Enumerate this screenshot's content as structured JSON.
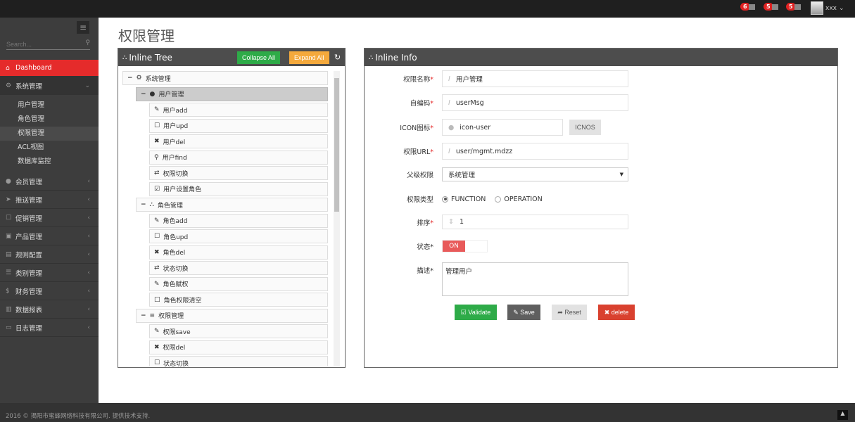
{
  "topbar": {
    "badges": [
      {
        "count": "6",
        "icon": "bell-icon"
      },
      {
        "count": "5",
        "icon": "envelope-icon"
      },
      {
        "count": "5",
        "icon": "tasks-icon"
      }
    ],
    "user": "xxx"
  },
  "sidebar": {
    "search_placeholder": "Search...",
    "dashboard": "Dashboard",
    "system": "系统管理",
    "sub": [
      "用户管理",
      "角色管理",
      "权限管理",
      "ACL视图",
      "数据库监控"
    ],
    "selected_sub": "权限管理",
    "groups": [
      {
        "label": "会员管理",
        "icon": "user-icon"
      },
      {
        "label": "推送管理",
        "icon": "send-icon"
      },
      {
        "label": "促销管理",
        "icon": "edit-icon"
      },
      {
        "label": "产品管理",
        "icon": "folder-icon"
      },
      {
        "label": "规则配置",
        "icon": "rule-icon"
      },
      {
        "label": "类别管理",
        "icon": "list-icon"
      },
      {
        "label": "财务管理",
        "icon": "money-icon"
      },
      {
        "label": "数据报表",
        "icon": "chart-icon"
      },
      {
        "label": "日志管理",
        "icon": "log-icon"
      }
    ]
  },
  "page_title": "权限管理",
  "tree_panel": {
    "title": "Inline Tree",
    "collapse": "Collapse All",
    "expand": "Expand All",
    "nodes": [
      {
        "level": 0,
        "label": "系统管理",
        "icon": "cogs-icon",
        "toggle": "−"
      },
      {
        "level": 1,
        "label": "用户管理",
        "icon": "user-icon",
        "toggle": "−",
        "selected": true
      },
      {
        "level": 2,
        "label": "用户add",
        "icon": "pencil-icon"
      },
      {
        "level": 2,
        "label": "用户upd",
        "icon": "edit-icon"
      },
      {
        "level": 2,
        "label": "用户del",
        "icon": "times-icon"
      },
      {
        "level": 2,
        "label": "用户find",
        "icon": "search-icon"
      },
      {
        "level": 2,
        "label": "权限切换",
        "icon": "retweet-icon"
      },
      {
        "level": 2,
        "label": "用户设置角色",
        "icon": "check-square-icon"
      },
      {
        "level": 1,
        "label": "角色管理",
        "icon": "sitemap-icon",
        "toggle": "−"
      },
      {
        "level": 2,
        "label": "角色add",
        "icon": "pencil-icon"
      },
      {
        "level": 2,
        "label": "角色upd",
        "icon": "edit-icon"
      },
      {
        "level": 2,
        "label": "角色del",
        "icon": "times-icon"
      },
      {
        "level": 2,
        "label": "状态切换",
        "icon": "retweet-icon"
      },
      {
        "level": 2,
        "label": "角色赋权",
        "icon": "pencil-icon"
      },
      {
        "level": 2,
        "label": "角色权限清空",
        "icon": "square-icon"
      },
      {
        "level": 1,
        "label": "权限管理",
        "icon": "bars-icon",
        "toggle": "−"
      },
      {
        "level": 2,
        "label": "权限save",
        "icon": "pencil-icon"
      },
      {
        "level": 2,
        "label": "权限del",
        "icon": "times-icon"
      },
      {
        "level": 2,
        "label": "状态切换",
        "icon": "edit-icon"
      }
    ]
  },
  "info_panel": {
    "title": "Inline Info",
    "name_label": "权限名称",
    "name": "用户管理",
    "code_label": "自编码",
    "code": "userMsg",
    "icon_label": "ICON图标",
    "icon_value": "icon-user",
    "icnos": "ICNOS",
    "url_label": "权限URL",
    "url": "user/mgmt.mdzz",
    "parent_label": "父级权限",
    "parent": "系统管理",
    "type_label": "权限类型",
    "type_options": [
      "FUNCTION",
      "OPERATION"
    ],
    "type_selected": "FUNCTION",
    "order_label": "排序",
    "order": "1",
    "status_label": "状态",
    "status": "ON",
    "desc_label": "描述",
    "desc": "管理用户",
    "buttons": {
      "validate": "Validate",
      "save": "Save",
      "reset": "Reset",
      "delete": "delete"
    }
  },
  "colors": {
    "accent": "#e52b2b",
    "green": "#2eab48",
    "orange": "#f4a93c"
  },
  "footer": "2016 © 揭阳市蜜蜂网络科技有限公司. 提供技术支持."
}
